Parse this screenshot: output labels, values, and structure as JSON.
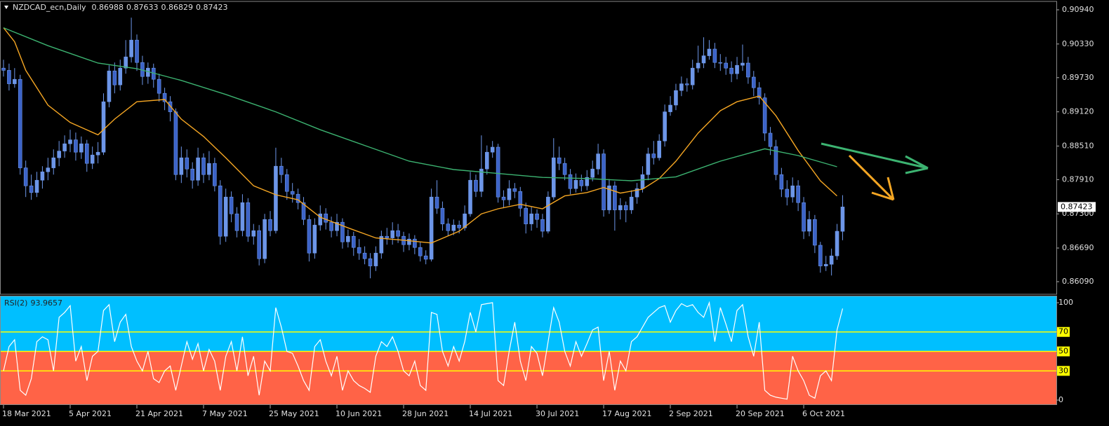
{
  "chart_data": [
    {
      "type": "candlestick",
      "title": "NZDCAD_ecn,Daily",
      "categories": [
        "18 Mar 2021",
        null,
        null,
        null,
        null,
        null,
        null,
        null,
        null,
        null,
        null,
        null,
        "5 Apr 2021",
        null,
        null,
        null,
        null,
        null,
        null,
        null,
        null,
        null,
        null,
        null,
        "21 Apr 2021",
        null,
        null,
        null,
        null,
        null,
        null,
        null,
        null,
        null,
        null,
        null,
        "7 May 2021",
        null,
        null,
        null,
        null,
        null,
        null,
        null,
        null,
        null,
        null,
        null,
        "25 May 2021",
        null,
        null,
        null,
        null,
        null,
        null,
        null,
        null,
        null,
        null,
        null,
        "10 Jun 2021",
        null,
        null,
        null,
        null,
        null,
        null,
        null,
        null,
        null,
        null,
        null,
        "28 Jun 2021",
        null,
        null,
        null,
        null,
        null,
        null,
        null,
        null,
        null,
        null,
        null,
        "14 Jul 2021",
        null,
        null,
        null,
        null,
        null,
        null,
        null,
        null,
        null,
        null,
        null,
        "30 Jul 2021",
        null,
        null,
        null,
        null,
        null,
        null,
        null,
        null,
        null,
        null,
        null,
        "17 Aug 2021",
        null,
        null,
        null,
        null,
        null,
        null,
        null,
        null,
        null,
        null,
        null,
        "2 Sep 2021",
        null,
        null,
        null,
        null,
        null,
        null,
        null,
        null,
        null,
        null,
        null,
        "20 Sep 2021",
        null,
        null,
        null,
        null,
        null,
        null,
        null,
        null,
        null,
        null,
        null,
        "6 Oct 2021",
        null,
        null,
        null,
        null,
        null,
        null,
        null
      ],
      "open": [
        0.899,
        0.8986,
        0.8962,
        0.897,
        0.8812,
        0.878,
        0.8768,
        0.879,
        0.8805,
        0.8812,
        0.883,
        0.8842,
        0.8855,
        0.8862,
        0.884,
        0.8855,
        0.882,
        0.8835,
        0.884,
        0.893,
        0.8985,
        0.896,
        0.899,
        0.901,
        0.904,
        0.9,
        0.8975,
        0.899,
        0.897,
        0.8945,
        0.893,
        0.8912,
        0.88,
        0.883,
        0.881,
        0.879,
        0.883,
        0.88,
        0.882,
        0.878,
        0.869,
        0.876,
        0.873,
        0.87,
        0.875,
        0.869,
        0.87,
        0.865,
        0.872,
        0.87,
        0.8815,
        0.88,
        0.877,
        0.8765,
        0.875,
        0.872,
        0.866,
        0.871,
        0.873,
        0.8715,
        0.87,
        0.8715,
        0.868,
        0.869,
        0.867,
        0.866,
        0.865,
        0.8637,
        0.866,
        0.869,
        0.8687,
        0.87,
        0.869,
        0.8675,
        0.8685,
        0.867,
        0.8655,
        0.8649,
        0.876,
        0.874,
        0.8712,
        0.87,
        0.871,
        0.8705,
        0.873,
        0.879,
        0.877,
        0.881,
        0.884,
        0.8849,
        0.876,
        0.8755,
        0.8775,
        0.877,
        0.874,
        0.8712,
        0.873,
        0.872,
        0.8699,
        0.876,
        0.883,
        0.882,
        0.88,
        0.8775,
        0.879,
        0.878,
        0.8795,
        0.881,
        0.8837,
        0.8737,
        0.878,
        0.8737,
        0.8745,
        0.8737,
        0.876,
        0.8775,
        0.88,
        0.8837,
        0.883,
        0.886,
        0.8912,
        0.8924,
        0.895,
        0.8962,
        0.896,
        0.899,
        0.8999,
        0.9012,
        0.9024,
        0.9,
        0.8999,
        0.899,
        0.898,
        0.8995,
        0.8999,
        0.8974,
        0.8955,
        0.8937,
        0.8874,
        0.885,
        0.88,
        0.8774,
        0.876,
        0.878,
        0.875,
        0.8699,
        0.872,
        0.8674,
        0.8637,
        0.864,
        0.8655,
        0.86988
      ],
      "high": [
        0.9005,
        0.8998,
        0.899,
        0.8978,
        0.8825,
        0.88,
        0.8805,
        0.8815,
        0.883,
        0.8845,
        0.886,
        0.887,
        0.888,
        0.8875,
        0.8868,
        0.8862,
        0.885,
        0.8858,
        0.8945,
        0.8995,
        0.9,
        0.9005,
        0.904,
        0.908,
        0.905,
        0.9012,
        0.9,
        0.8998,
        0.898,
        0.8955,
        0.894,
        0.8918,
        0.885,
        0.8845,
        0.8822,
        0.8848,
        0.8838,
        0.8842,
        0.883,
        0.879,
        0.8775,
        0.877,
        0.8742,
        0.8765,
        0.8758,
        0.8712,
        0.871,
        0.873,
        0.8735,
        0.8848,
        0.883,
        0.881,
        0.8785,
        0.8775,
        0.876,
        0.8728,
        0.8722,
        0.8745,
        0.874,
        0.8725,
        0.873,
        0.8722,
        0.8702,
        0.8698,
        0.8685,
        0.8672,
        0.866,
        0.8672,
        0.87,
        0.8705,
        0.8715,
        0.8712,
        0.8698,
        0.8695,
        0.8692,
        0.868,
        0.8665,
        0.8775,
        0.879,
        0.8752,
        0.8722,
        0.872,
        0.8718,
        0.8745,
        0.8805,
        0.88,
        0.887,
        0.8852,
        0.886,
        0.8855,
        0.8772,
        0.879,
        0.8785,
        0.8778,
        0.875,
        0.8742,
        0.8738,
        0.873,
        0.877,
        0.8865,
        0.885,
        0.883,
        0.881,
        0.8802,
        0.88,
        0.8808,
        0.8825,
        0.8855,
        0.8845,
        0.8792,
        0.8788,
        0.8758,
        0.8752,
        0.8772,
        0.8785,
        0.8815,
        0.8848,
        0.886,
        0.8872,
        0.8925,
        0.894,
        0.8962,
        0.8975,
        0.8972,
        0.9005,
        0.903,
        0.9045,
        0.904,
        0.9035,
        0.9015,
        0.901,
        0.9002,
        0.901,
        0.9032,
        0.901,
        0.8985,
        0.8965,
        0.8945,
        0.8885,
        0.8862,
        0.8812,
        0.879,
        0.8795,
        0.879,
        0.876,
        0.8735,
        0.8728,
        0.868,
        0.8655,
        0.8668,
        0.8712,
        0.87633
      ],
      "low": [
        0.8975,
        0.895,
        0.8955,
        0.88,
        0.876,
        0.8755,
        0.876,
        0.8775,
        0.879,
        0.88,
        0.8815,
        0.883,
        0.884,
        0.8825,
        0.8828,
        0.8805,
        0.881,
        0.882,
        0.8835,
        0.892,
        0.8945,
        0.895,
        0.898,
        0.9,
        0.8985,
        0.896,
        0.8962,
        0.8955,
        0.893,
        0.8915,
        0.8895,
        0.879,
        0.8785,
        0.8795,
        0.8775,
        0.878,
        0.8785,
        0.879,
        0.877,
        0.8675,
        0.868,
        0.8715,
        0.8688,
        0.869,
        0.868,
        0.8675,
        0.8638,
        0.8642,
        0.869,
        0.8695,
        0.8785,
        0.8755,
        0.875,
        0.8738,
        0.871,
        0.8645,
        0.865,
        0.87,
        0.8702,
        0.8688,
        0.869,
        0.8668,
        0.867,
        0.8655,
        0.8648,
        0.864,
        0.8615,
        0.8628,
        0.865,
        0.8675,
        0.8675,
        0.8678,
        0.8662,
        0.8665,
        0.8658,
        0.8645,
        0.864,
        0.8645,
        0.873,
        0.87,
        0.869,
        0.8692,
        0.8695,
        0.87,
        0.8725,
        0.876,
        0.876,
        0.88,
        0.883,
        0.875,
        0.874,
        0.8745,
        0.8758,
        0.8725,
        0.8695,
        0.87,
        0.8705,
        0.8688,
        0.8695,
        0.8755,
        0.8808,
        0.879,
        0.8765,
        0.8768,
        0.877,
        0.8772,
        0.8788,
        0.88,
        0.8725,
        0.873,
        0.87,
        0.872,
        0.8715,
        0.873,
        0.8748,
        0.8768,
        0.879,
        0.8818,
        0.8825,
        0.885,
        0.8905,
        0.8915,
        0.894,
        0.8948,
        0.8952,
        0.8982,
        0.899,
        0.9005,
        0.899,
        0.8985,
        0.8978,
        0.8965,
        0.897,
        0.8985,
        0.8962,
        0.894,
        0.8925,
        0.886,
        0.8835,
        0.879,
        0.876,
        0.8745,
        0.875,
        0.8735,
        0.8685,
        0.869,
        0.866,
        0.8625,
        0.8628,
        0.862,
        0.8648,
        0.86829
      ],
      "close": [
        0.8986,
        0.8962,
        0.897,
        0.8812,
        0.878,
        0.8768,
        0.879,
        0.8805,
        0.8812,
        0.883,
        0.8842,
        0.8855,
        0.8862,
        0.884,
        0.8855,
        0.882,
        0.8835,
        0.884,
        0.893,
        0.8985,
        0.896,
        0.899,
        0.901,
        0.904,
        0.9,
        0.8975,
        0.899,
        0.897,
        0.8945,
        0.893,
        0.8912,
        0.88,
        0.883,
        0.881,
        0.879,
        0.883,
        0.88,
        0.882,
        0.878,
        0.869,
        0.876,
        0.873,
        0.87,
        0.875,
        0.869,
        0.87,
        0.865,
        0.872,
        0.87,
        0.8815,
        0.88,
        0.877,
        0.8765,
        0.875,
        0.872,
        0.866,
        0.871,
        0.873,
        0.8715,
        0.87,
        0.8715,
        0.868,
        0.869,
        0.867,
        0.866,
        0.865,
        0.8637,
        0.866,
        0.869,
        0.8687,
        0.87,
        0.869,
        0.8675,
        0.8685,
        0.867,
        0.8655,
        0.8649,
        0.876,
        0.874,
        0.8712,
        0.87,
        0.871,
        0.8705,
        0.873,
        0.879,
        0.877,
        0.881,
        0.884,
        0.8849,
        0.876,
        0.8755,
        0.8775,
        0.877,
        0.874,
        0.8712,
        0.873,
        0.872,
        0.8699,
        0.876,
        0.883,
        0.882,
        0.88,
        0.8775,
        0.879,
        0.878,
        0.8795,
        0.881,
        0.8837,
        0.8737,
        0.878,
        0.8737,
        0.8745,
        0.8737,
        0.876,
        0.8775,
        0.88,
        0.8837,
        0.883,
        0.886,
        0.8912,
        0.8924,
        0.895,
        0.8962,
        0.896,
        0.899,
        0.8999,
        0.9012,
        0.9024,
        0.9,
        0.8999,
        0.899,
        0.898,
        0.8995,
        0.8999,
        0.8974,
        0.8955,
        0.8937,
        0.8874,
        0.885,
        0.88,
        0.8774,
        0.876,
        0.878,
        0.875,
        0.8699,
        0.872,
        0.8674,
        0.8637,
        0.864,
        0.8655,
        0.8699,
        0.87423
      ],
      "up_color": "#6d96e8",
      "down_color": "#3c63c8",
      "wick_color": "#6d96e8",
      "series": [
        {
          "color": "#f5a623",
          "x": [
            0,
            2,
            4,
            8,
            12,
            17,
            20,
            24,
            29,
            32,
            36,
            40,
            45,
            49,
            53,
            57,
            62,
            67,
            72,
            77,
            82,
            86,
            89,
            93,
            97,
            101,
            105,
            108,
            111,
            115,
            118,
            121,
            125,
            129,
            132,
            136,
            139,
            143,
            147,
            150
          ],
          "values": [
            0.9062,
            0.9037,
            0.8986,
            0.8924,
            0.8893,
            0.8871,
            0.8899,
            0.893,
            0.8934,
            0.8899,
            0.8868,
            0.883,
            0.878,
            0.8764,
            0.8755,
            0.8724,
            0.8705,
            0.8687,
            0.8683,
            0.8678,
            0.8699,
            0.873,
            0.8739,
            0.8747,
            0.8739,
            0.8762,
            0.8768,
            0.8777,
            0.8767,
            0.8774,
            0.8793,
            0.8824,
            0.8874,
            0.8914,
            0.893,
            0.894,
            0.8905,
            0.8843,
            0.8789,
            0.8762
          ]
        },
        {
          "color": "#3cb371",
          "x": [
            0,
            8,
            17,
            24,
            32,
            40,
            49,
            57,
            65,
            73,
            81,
            89,
            97,
            105,
            113,
            121,
            129,
            137,
            143,
            150
          ],
          "values": [
            0.9062,
            0.903,
            0.8999,
            0.8989,
            0.8968,
            0.8943,
            0.8912,
            0.888,
            0.8852,
            0.8824,
            0.8809,
            0.8802,
            0.8795,
            0.8793,
            0.8789,
            0.8796,
            0.8824,
            0.8846,
            0.8834,
            0.8814
          ]
        }
      ],
      "ylim": [
        0.85865,
        0.91065
      ],
      "yticks": [
        {
          "value": 0.9094,
          "label": "0.90940"
        },
        {
          "value": 0.9033,
          "label": "0.90330"
        },
        {
          "value": 0.8973,
          "label": "0.89730"
        },
        {
          "value": 0.8912,
          "label": "0.89120"
        },
        {
          "value": 0.8851,
          "label": "0.88510"
        },
        {
          "value": 0.8791,
          "label": "0.87910"
        },
        {
          "value": 0.873,
          "label": "0.87300"
        },
        {
          "value": 0.8669,
          "label": "0.86690"
        },
        {
          "value": 0.8609,
          "label": "0.86090"
        }
      ]
    },
    {
      "type": "line",
      "title": "RSI(2)",
      "color": "#ffffff",
      "values": [
        30,
        55,
        62,
        10,
        5,
        22,
        60,
        65,
        62,
        30,
        85,
        90,
        97,
        40,
        55,
        20,
        45,
        50,
        92,
        98,
        60,
        80,
        88,
        55,
        40,
        30,
        50,
        22,
        18,
        30,
        35,
        10,
        35,
        60,
        42,
        58,
        30,
        52,
        40,
        10,
        45,
        60,
        30,
        65,
        25,
        45,
        5,
        40,
        30,
        95,
        75,
        50,
        48,
        35,
        20,
        10,
        55,
        62,
        40,
        25,
        45,
        10,
        30,
        20,
        15,
        12,
        8,
        45,
        60,
        55,
        65,
        50,
        30,
        25,
        40,
        15,
        10,
        90,
        88,
        50,
        35,
        55,
        40,
        60,
        90,
        70,
        98,
        99,
        100,
        20,
        15,
        50,
        80,
        40,
        20,
        55,
        48,
        25,
        60,
        95,
        80,
        50,
        35,
        60,
        45,
        58,
        72,
        75,
        20,
        50,
        10,
        40,
        30,
        60,
        65,
        75,
        85,
        90,
        95,
        97,
        80,
        92,
        99,
        96,
        98,
        90,
        85,
        100,
        60,
        95,
        78,
        60,
        92,
        98,
        65,
        45,
        80,
        10,
        5,
        3,
        2,
        1,
        45,
        30,
        20,
        5,
        2,
        25,
        30,
        20,
        72,
        93.9657
      ],
      "ylim": [
        -5,
        106.5
      ],
      "yticks": [
        0,
        30,
        50,
        70,
        100
      ],
      "levels": [
        70,
        50,
        30
      ],
      "level_color": "#ffff00",
      "upper_zone_color": "#00bfff",
      "lower_zone_color": "#ff6347"
    }
  ]
}
